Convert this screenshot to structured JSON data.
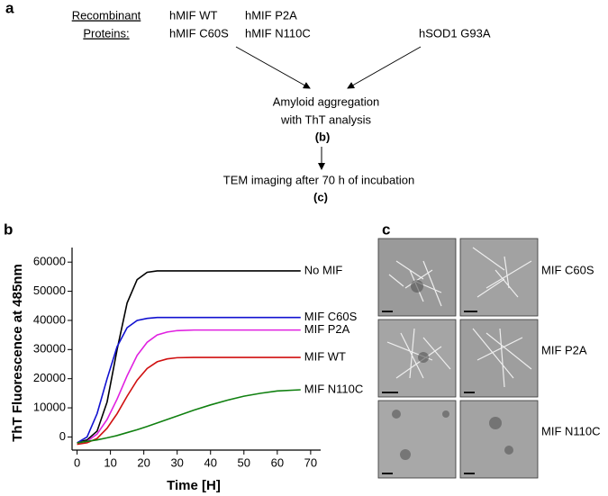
{
  "panel_a": {
    "label": "a",
    "source_label": [
      "Recombinant",
      "Proteins:"
    ],
    "proteins": [
      "hMIF WT",
      "hMIF C60S",
      "hMIF P2A",
      "hMIF N110C",
      "hSOD1 G93A"
    ],
    "step_b": [
      "Amyloid aggregation",
      "with ThT analysis",
      "(b)"
    ],
    "step_c": [
      "TEM imaging after 70 h of incubation",
      "(c)"
    ]
  },
  "panel_b": {
    "label": "b"
  },
  "chart_data": {
    "type": "line",
    "x_label": "Time [H]",
    "y_label": "ThT Fluorescence at 485nm",
    "x": [
      0,
      3,
      6,
      9,
      12,
      15,
      18,
      21,
      24,
      27,
      30,
      35,
      40,
      45,
      50,
      55,
      60,
      67
    ],
    "series": [
      {
        "name": "No MIF",
        "color": "#000000",
        "values": [
          -2000,
          -1000,
          2000,
          12000,
          30000,
          46000,
          54000,
          56500,
          57000,
          57000,
          57000,
          57000,
          57000,
          57000,
          57000,
          57000,
          57000,
          57000
        ]
      },
      {
        "name": "MIF C60S",
        "color": "#1010d0",
        "values": [
          -2000,
          0,
          8000,
          20000,
          31000,
          37500,
          40000,
          40700,
          41000,
          41000,
          41000,
          41000,
          41000,
          41000,
          41000,
          41000,
          41000,
          41000
        ]
      },
      {
        "name": "MIF P2A",
        "color": "#e020e0",
        "values": [
          -2000,
          -1500,
          1000,
          6000,
          13000,
          21000,
          28000,
          32500,
          35000,
          36000,
          36500,
          36700,
          36700,
          36700,
          36700,
          36700,
          36700,
          36700
        ]
      },
      {
        "name": "MIF WT",
        "color": "#d01010",
        "values": [
          -2500,
          -2000,
          -500,
          3000,
          8000,
          14000,
          19500,
          23500,
          25800,
          26800,
          27200,
          27300,
          27300,
          27300,
          27300,
          27300,
          27300,
          27300
        ]
      },
      {
        "name": "MIF N110C",
        "color": "#108010",
        "values": [
          -2000,
          -1500,
          -1000,
          -300,
          500,
          1500,
          2500,
          3600,
          4800,
          6000,
          7200,
          9200,
          11000,
          12600,
          14000,
          15000,
          15800,
          16200
        ]
      }
    ],
    "xlim": [
      -1.5,
      73
    ],
    "ylim": [
      -4500,
      65000
    ],
    "xticks": [
      0,
      10,
      20,
      30,
      40,
      50,
      60,
      70
    ],
    "yticks": [
      0,
      10000,
      20000,
      30000,
      40000,
      50000,
      60000
    ]
  },
  "panel_c": {
    "label": "c",
    "rows": [
      "MIF C60S",
      "MIF P2A",
      "MIF N110C"
    ]
  }
}
